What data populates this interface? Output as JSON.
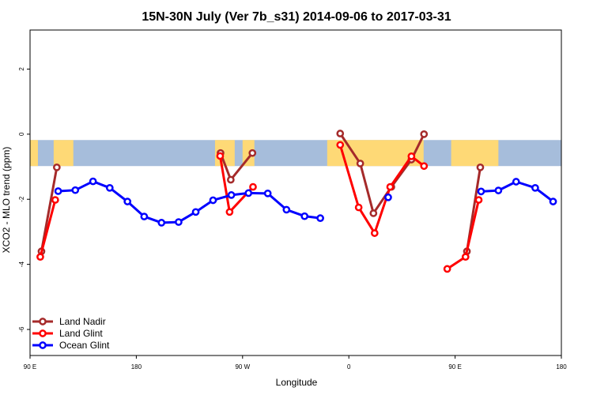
{
  "chart_data": {
    "type": "line",
    "title": "15N-30N July (Ver 7b_s31)   2014-09-06 to 2017-03-31",
    "xlabel": "Longitude",
    "ylabel": "XCO2 - MLO trend (ppm)",
    "xlim": [
      0,
      270
    ],
    "ylim": [
      -6.8,
      3.2
    ],
    "x_ticks": [
      {
        "value": 0,
        "label": "90 E"
      },
      {
        "value": 54,
        "label": "180"
      },
      {
        "value": 108,
        "label": "90 W"
      },
      {
        "value": 162,
        "label": "0"
      },
      {
        "value": 216,
        "label": "90 E"
      },
      {
        "value": 270,
        "label": "180"
      }
    ],
    "y_ticks": [
      {
        "value": -6,
        "label": "-6"
      },
      {
        "value": -4,
        "label": "-4"
      },
      {
        "value": -2,
        "label": "-2"
      },
      {
        "value": 0,
        "label": "0"
      },
      {
        "value": 2,
        "label": "2"
      }
    ],
    "map_band": {
      "y_top": -0.18,
      "y_bottom": -0.98,
      "ocean_color": "#a6bddb",
      "land_color": "#fed976"
    },
    "series": [
      {
        "name": "Land Nadir",
        "color": "#a52a2a",
        "segments": [
          {
            "x": [
              5.8,
              13.6
            ],
            "y": [
              -3.6,
              -1.02
            ]
          },
          {
            "x": [
              96.8,
              102.0,
              113.0
            ],
            "y": [
              -0.58,
              -1.4,
              -0.58
            ]
          },
          {
            "x": [
              157.6,
              167.8,
              174.5,
              183.6,
              193.8,
              200.2
            ],
            "y": [
              0.02,
              -0.9,
              -2.43,
              -1.62,
              -0.78,
              0.0
            ]
          },
          {
            "x": [
              222.0,
              228.8
            ],
            "y": [
              -3.6,
              -1.02
            ]
          }
        ]
      },
      {
        "name": "Land Glint",
        "color": "#ff0000",
        "segments": [
          {
            "x": [
              5.2,
              12.8
            ],
            "y": [
              -3.77,
              -2.02
            ]
          },
          {
            "x": [
              96.6,
              101.4,
              113.3
            ],
            "y": [
              -0.67,
              -2.39,
              -1.62
            ]
          },
          {
            "x": [
              157.6,
              167.0,
              175.1,
              183.0,
              193.8,
              200.2
            ],
            "y": [
              -0.33,
              -2.25,
              -3.04,
              -1.62,
              -0.68,
              -0.98
            ]
          },
          {
            "x": [
              212.0,
              221.3,
              228.0
            ],
            "y": [
              -4.14,
              -3.77,
              -2.02
            ]
          }
        ]
      },
      {
        "name": "Ocean Glint",
        "color": "#0000ff",
        "segments": [
          {
            "x": [
              14.3,
              23.0,
              32.0,
              40.5,
              49.5,
              58.0,
              66.8,
              75.5,
              84.2,
              93.0,
              102.3,
              111.0,
              120.8,
              130.3,
              139.5,
              147.5
            ],
            "y": [
              -1.75,
              -1.72,
              -1.45,
              -1.65,
              -2.07,
              -2.53,
              -2.72,
              -2.7,
              -2.39,
              -2.03,
              -1.87,
              -1.81,
              -1.82,
              -2.32,
              -2.52,
              -2.58
            ]
          },
          {
            "x": [
              182.0
            ],
            "y": [
              -1.94
            ]
          },
          {
            "x": [
              229.2,
              238.0,
              247.0,
              256.7,
              265.8
            ],
            "y": [
              -1.76,
              -1.73,
              -1.46,
              -1.65,
              -2.07
            ]
          }
        ]
      }
    ],
    "legend": {
      "position": "bottom-left",
      "entries": [
        "Land Nadir",
        "Land Glint",
        "Ocean Glint"
      ]
    }
  }
}
